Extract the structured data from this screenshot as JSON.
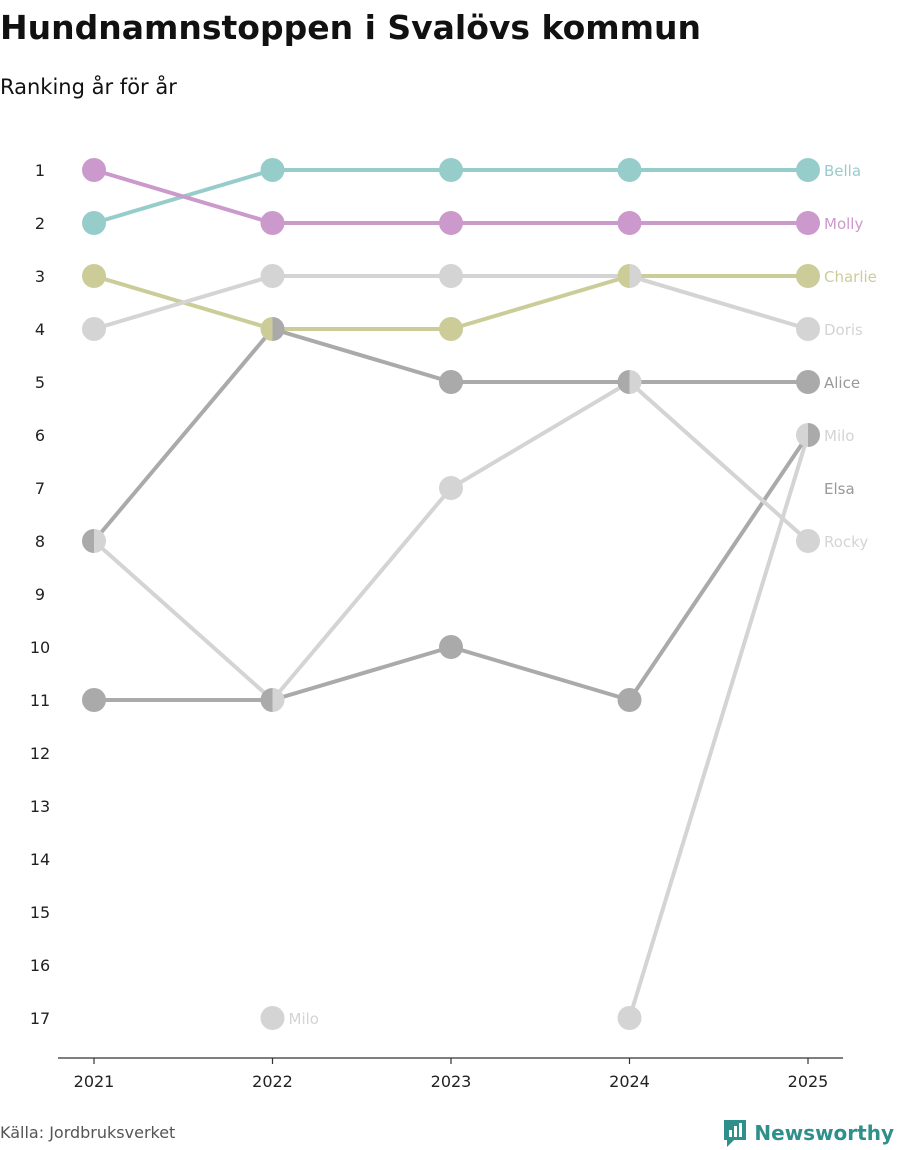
{
  "header": {
    "title": "Hundnamnstoppen i Svalövs kommun",
    "subtitle": "Ranking år för år"
  },
  "footer": {
    "source": "Källa: Jordbruksverket",
    "brand": "Newsworthy",
    "brand_icon": "bar-chart-logo-icon",
    "brand_color": "#2f8f8b"
  },
  "chart_data": {
    "type": "line",
    "chart_subtype": "bump",
    "x": [
      2021,
      2022,
      2023,
      2024,
      2025
    ],
    "y_ticks": [
      1,
      2,
      3,
      4,
      5,
      6,
      7,
      8,
      9,
      10,
      11,
      12,
      13,
      14,
      15,
      16,
      17
    ],
    "ylim": [
      1,
      17
    ],
    "y_reversed": true,
    "grid": false,
    "series": [
      {
        "name": "Bella",
        "values": [
          2,
          1,
          1,
          1,
          1
        ],
        "color": "#96cdcb"
      },
      {
        "name": "Molly",
        "values": [
          1,
          2,
          2,
          2,
          2
        ],
        "color": "#cc99cc"
      },
      {
        "name": "Charlie",
        "values": [
          3,
          4,
          4,
          3,
          3
        ],
        "color": "#cccc99"
      },
      {
        "name": "Doris",
        "values": [
          4,
          3,
          3,
          3,
          4
        ],
        "color": "#d4d4d4"
      },
      {
        "name": "Alice",
        "values": [
          8,
          4,
          5,
          5,
          5
        ],
        "color": "#aaaaaa"
      },
      {
        "name": "Milo",
        "values": [
          null,
          17,
          null,
          17,
          6
        ],
        "color": "#d4d4d4"
      },
      {
        "name": "Elsa",
        "values": [
          11,
          11,
          10,
          11,
          6
        ],
        "color": "#aaaaaa"
      },
      {
        "name": "Rocky",
        "values": [
          8,
          11,
          7,
          5,
          8
        ],
        "color": "#d4d4d4"
      }
    ],
    "end_labels": [
      {
        "text": "Bella",
        "rank": 1,
        "color": "#96cdcb"
      },
      {
        "text": "Molly",
        "rank": 2,
        "color": "#cc99cc"
      },
      {
        "text": "Charlie",
        "rank": 3,
        "color": "#cccc99"
      },
      {
        "text": "Doris",
        "rank": 4,
        "color": "#d4d4d4"
      },
      {
        "text": "Alice",
        "rank": 5,
        "color": "#999999"
      },
      {
        "text": "Milo",
        "rank": 6,
        "color": "#d4d4d4"
      },
      {
        "text": "Elsa",
        "rank": 7,
        "color": "#999999"
      },
      {
        "text": "Rocky",
        "rank": 8,
        "color": "#d4d4d4"
      }
    ],
    "annotations": [
      {
        "text": "Milo",
        "x": 2022,
        "rank": 17,
        "color": "#d4d4d4"
      }
    ]
  }
}
